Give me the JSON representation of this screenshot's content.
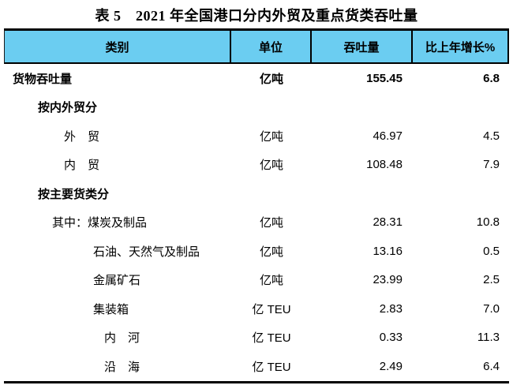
{
  "title": "表 5　2021 年全国港口分内外贸及重点货类吞吐量",
  "colors": {
    "header_bg": "#6BCDF1",
    "border": "#000000",
    "text": "#000000"
  },
  "table": {
    "columns": [
      "类别",
      "单位",
      "吞吐量",
      "比上年增长%"
    ],
    "rows": [
      {
        "category": "货物吞吐量",
        "unit": "亿吨",
        "throughput": "155.45",
        "growth": "6.8",
        "style": "total"
      },
      {
        "category": "按内外贸分",
        "unit": "",
        "throughput": "",
        "growth": "",
        "style": "section"
      },
      {
        "category": "外　贸",
        "unit": "亿吨",
        "throughput": "46.97",
        "growth": "4.5",
        "style": "l2"
      },
      {
        "category": "内　贸",
        "unit": "亿吨",
        "throughput": "108.48",
        "growth": "7.9",
        "style": "l2"
      },
      {
        "category": "按主要货类分",
        "unit": "",
        "throughput": "",
        "growth": "",
        "style": "section"
      },
      {
        "category": "其中：煤炭及制品",
        "unit": "亿吨",
        "throughput": "28.31",
        "growth": "10.8",
        "style": "prefix"
      },
      {
        "category": "石油、天然气及制品",
        "unit": "亿吨",
        "throughput": "13.16",
        "growth": "0.5",
        "style": "l3"
      },
      {
        "category": "金属矿石",
        "unit": "亿吨",
        "throughput": "23.99",
        "growth": "2.5",
        "style": "l3"
      },
      {
        "category": "集装箱",
        "unit": "亿 TEU",
        "throughput": "2.83",
        "growth": "7.0",
        "style": "l3"
      },
      {
        "category": "内　河",
        "unit": "亿 TEU",
        "throughput": "0.33",
        "growth": "11.3",
        "style": "l4"
      },
      {
        "category": "沿　海",
        "unit": "亿 TEU",
        "throughput": "2.49",
        "growth": "6.4",
        "style": "l4"
      }
    ]
  }
}
